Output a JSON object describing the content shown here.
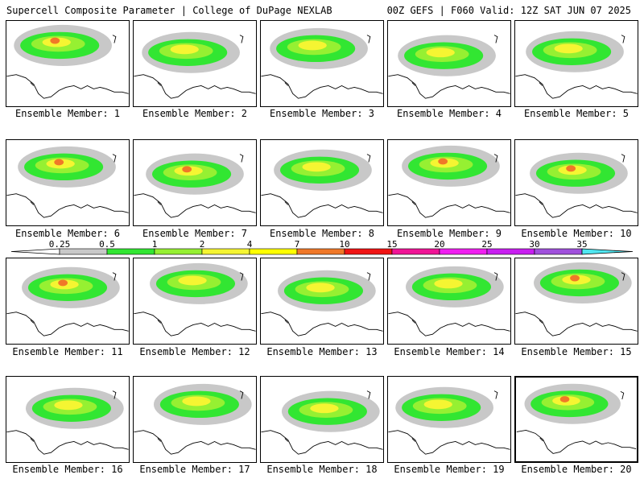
{
  "header": {
    "left": "Supercell Composite Parameter | College of DuPage NEXLAB",
    "right": "00Z GEFS | F060 Valid: 12Z SAT JUN 07 2025"
  },
  "colorbar": {
    "levels": [
      "0.25",
      "0.5",
      "1",
      "2",
      "4",
      "7",
      "10",
      "15",
      "20",
      "25",
      "30",
      "35"
    ],
    "colors": [
      "#c8c8c8",
      "#32e632",
      "#96f032",
      "#f5f532",
      "#ffff00",
      "#f07828",
      "#f01414",
      "#f01496",
      "#f01ef0",
      "#c81ef0",
      "#a050dc",
      "#50e6f0"
    ]
  },
  "panels": [
    {
      "caption": "Ensemble Member: 1",
      "intensity": "high"
    },
    {
      "caption": "Ensemble Member: 2",
      "intensity": "low"
    },
    {
      "caption": "Ensemble Member: 3",
      "intensity": "mid"
    },
    {
      "caption": "Ensemble Member: 4",
      "intensity": "mid"
    },
    {
      "caption": "Ensemble Member: 5",
      "intensity": "mid"
    },
    {
      "caption": "Ensemble Member: 6",
      "intensity": "high"
    },
    {
      "caption": "Ensemble Member: 7",
      "intensity": "high"
    },
    {
      "caption": "Ensemble Member: 8",
      "intensity": "low"
    },
    {
      "caption": "Ensemble Member: 9",
      "intensity": "high"
    },
    {
      "caption": "Ensemble Member: 10",
      "intensity": "high"
    },
    {
      "caption": "Ensemble Member: 11",
      "intensity": "high"
    },
    {
      "caption": "Ensemble Member: 12",
      "intensity": "mid"
    },
    {
      "caption": "Ensemble Member: 13",
      "intensity": "mid"
    },
    {
      "caption": "Ensemble Member: 14",
      "intensity": "low"
    },
    {
      "caption": "Ensemble Member: 15",
      "intensity": "high"
    },
    {
      "caption": "Ensemble Member: 16",
      "intensity": "mid"
    },
    {
      "caption": "Ensemble Member: 17",
      "intensity": "mid"
    },
    {
      "caption": "Ensemble Member: 18",
      "intensity": "mid"
    },
    {
      "caption": "Ensemble Member: 19",
      "intensity": "mid"
    },
    {
      "caption": "Ensemble Member: 20",
      "intensity": "high"
    }
  ]
}
